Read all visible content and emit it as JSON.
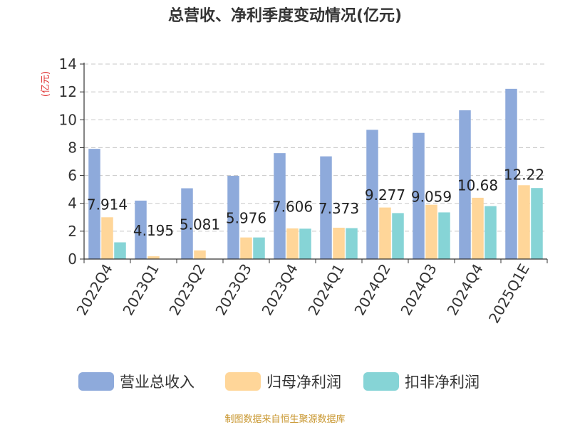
{
  "chart_data": {
    "type": "bar",
    "title": "总营收、净利季度变动情况(亿元)",
    "ylabel": "(亿元)",
    "xlabel": "",
    "categories": [
      "2022Q4",
      "2023Q1",
      "2023Q2",
      "2023Q3",
      "2023Q4",
      "2024Q1",
      "2024Q2",
      "2024Q3",
      "2024Q4",
      "2025Q1E"
    ],
    "series": [
      {
        "name": "营业总收入",
        "color": "#8eaadb",
        "values": [
          7.914,
          4.195,
          5.081,
          5.976,
          7.606,
          7.373,
          9.277,
          9.059,
          10.68,
          12.22
        ]
      },
      {
        "name": "归母净利润",
        "color": "#ffd699",
        "values": [
          3.0,
          0.2,
          0.62,
          1.55,
          2.2,
          2.25,
          3.7,
          3.9,
          4.4,
          5.3
        ]
      },
      {
        "name": "扣非净利润",
        "color": "#86d4d6",
        "values": [
          1.2,
          0.02,
          0.02,
          1.55,
          2.18,
          2.22,
          3.3,
          3.35,
          3.8,
          5.1
        ]
      }
    ],
    "data_labels": [
      "7.914",
      "4.195",
      "5.081",
      "5.976",
      "7.606",
      "7.373",
      "9.277",
      "9.059",
      "10.68",
      "12.22"
    ],
    "ylim": [
      0,
      14
    ],
    "yticks": [
      0,
      2,
      4,
      6,
      8,
      10,
      12,
      14
    ],
    "grid": true,
    "legend_position": "bottom"
  },
  "footer": {
    "source": "制图数据来自恒生聚源数据库"
  }
}
